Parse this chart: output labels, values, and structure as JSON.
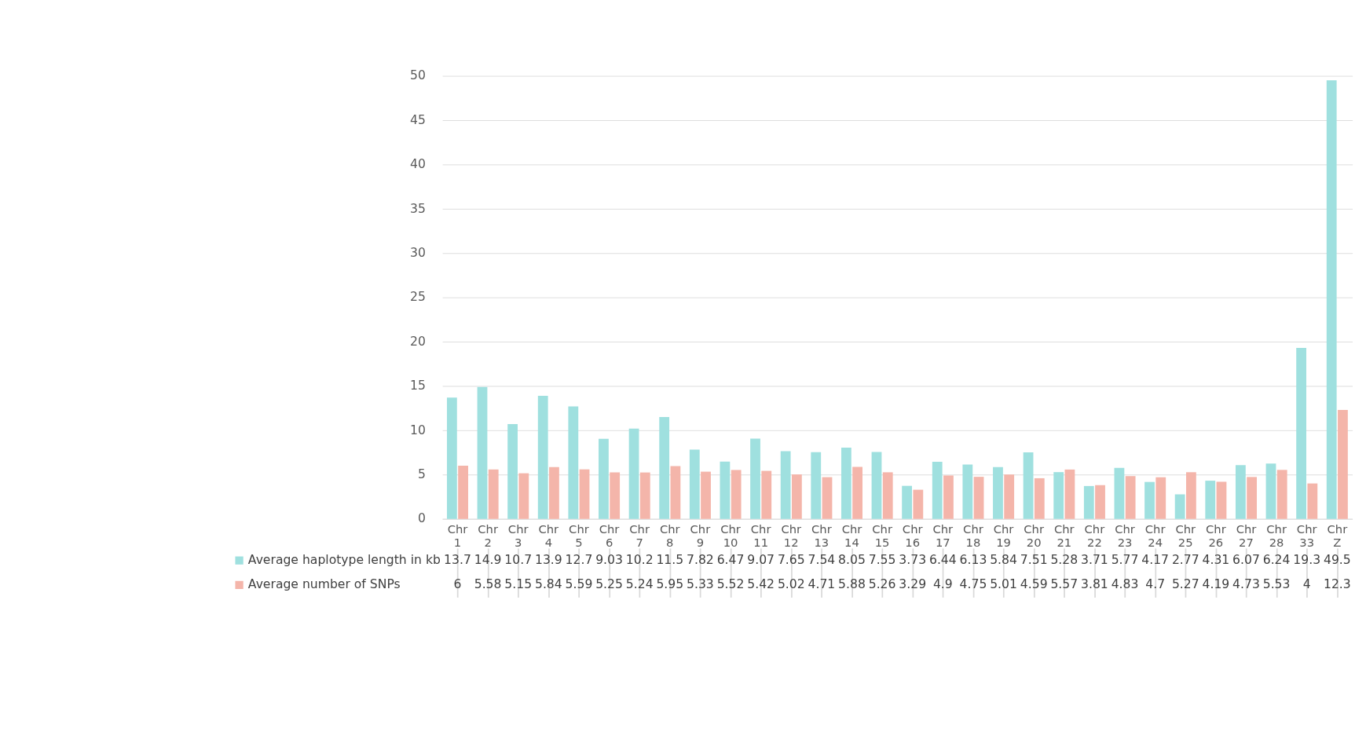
{
  "chart_data": {
    "type": "bar",
    "categories": [
      "Chr 1",
      "Chr 2",
      "Chr 3",
      "Chr 4",
      "Chr 5",
      "Chr 6",
      "Chr 7",
      "Chr 8",
      "Chr 9",
      "Chr 10",
      "Chr 11",
      "Chr 12",
      "Chr 13",
      "Chr 14",
      "Chr 15",
      "Chr 16",
      "Chr 17",
      "Chr 18",
      "Chr 19",
      "Chr 20",
      "Chr 21",
      "Chr 22",
      "Chr 23",
      "Chr 24",
      "Chr 25",
      "Chr 26",
      "Chr 27",
      "Chr 28",
      "Chr 33",
      "Chr Z"
    ],
    "series": [
      {
        "name": "Average haplotype length in kb",
        "color": "#9fe0df",
        "values": [
          13.7,
          14.9,
          10.7,
          13.9,
          12.7,
          9.03,
          10.2,
          11.5,
          7.82,
          6.47,
          9.07,
          7.65,
          7.54,
          8.05,
          7.55,
          3.73,
          6.44,
          6.13,
          5.84,
          7.51,
          5.28,
          3.71,
          5.77,
          4.17,
          2.77,
          4.31,
          6.07,
          6.24,
          19.3,
          49.5
        ]
      },
      {
        "name": "Average number of SNPs",
        "color": "#f4b5aa",
        "values": [
          6,
          5.58,
          5.15,
          5.84,
          5.59,
          5.25,
          5.24,
          5.95,
          5.33,
          5.52,
          5.42,
          5.02,
          4.71,
          5.88,
          5.26,
          3.29,
          4.9,
          4.75,
          5.01,
          4.59,
          5.57,
          3.81,
          4.83,
          4.7,
          5.27,
          4.19,
          4.73,
          5.53,
          4,
          12.3
        ]
      }
    ],
    "ylim": [
      0,
      50
    ],
    "yticks": [
      0,
      5,
      10,
      15,
      20,
      25,
      30,
      35,
      40,
      45,
      50
    ],
    "grid": "y",
    "legend": "bottom",
    "data_labels": true
  }
}
